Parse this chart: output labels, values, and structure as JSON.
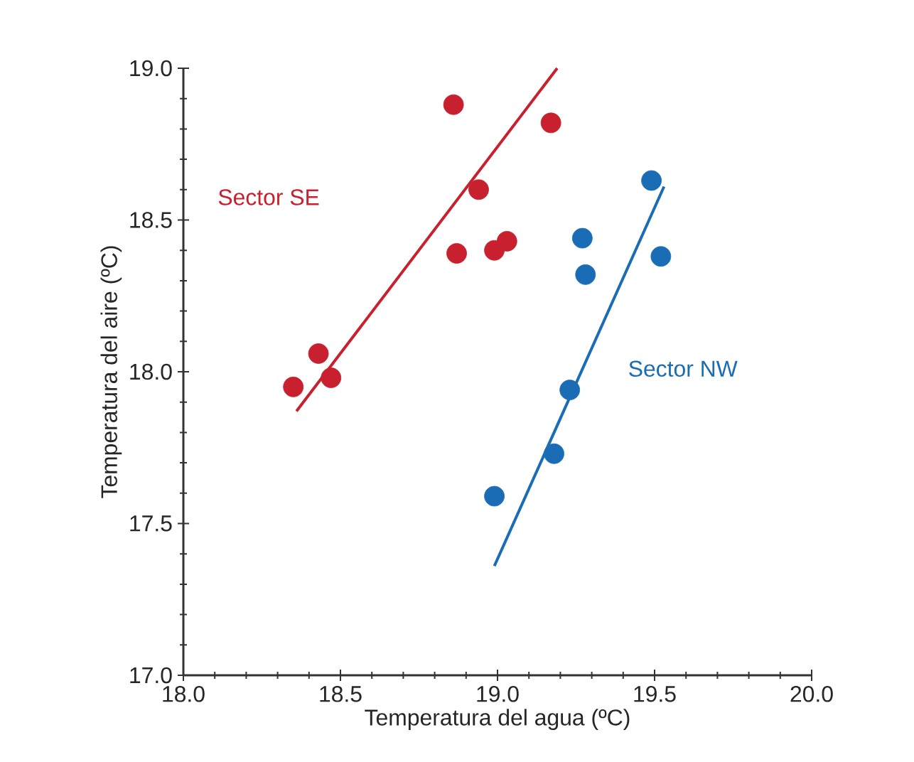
{
  "chart_data": {
    "type": "scatter",
    "xlabel": "Temperatura del agua (ºC)",
    "ylabel": "Temperatura del aire (ºC)",
    "xlim": [
      18.0,
      20.0
    ],
    "ylim": [
      17.0,
      19.0
    ],
    "xticks": [
      {
        "value": 18.0,
        "label": "18.0"
      },
      {
        "value": 18.5,
        "label": "18.5"
      },
      {
        "value": 19.0,
        "label": "19.0"
      },
      {
        "value": 19.5,
        "label": "19.5"
      },
      {
        "value": 20.0,
        "label": "20.0"
      }
    ],
    "yticks": [
      {
        "value": 17.0,
        "label": "17.0"
      },
      {
        "value": 17.5,
        "label": "17.5"
      },
      {
        "value": 18.0,
        "label": "18.0"
      },
      {
        "value": 18.5,
        "label": "18.5"
      },
      {
        "value": 19.0,
        "label": "19.0"
      }
    ],
    "grid": false,
    "legend": false,
    "marker": "circle",
    "series": [
      {
        "name": "Sector SE",
        "color": "#c8202e",
        "x": [
          18.35,
          18.43,
          18.47,
          18.86,
          18.87,
          18.94,
          18.99,
          19.03,
          19.17
        ],
        "values": [
          17.95,
          18.06,
          17.98,
          18.88,
          18.39,
          18.6,
          18.4,
          18.43,
          18.82
        ]
      },
      {
        "name": "Sector NW",
        "color": "#1a6db5",
        "x": [
          18.99,
          19.18,
          19.23,
          19.27,
          19.28,
          19.49,
          19.52
        ],
        "values": [
          17.59,
          17.73,
          17.94,
          18.44,
          18.32,
          18.63,
          18.38
        ]
      },
      {
        "type": "line",
        "color": "#c8202e",
        "marker": "none",
        "x": [
          18.36,
          19.19
        ],
        "values": [
          17.87,
          19.0
        ]
      },
      {
        "type": "line",
        "color": "#1a6db5",
        "marker": "none",
        "x": [
          18.99,
          19.53
        ],
        "values": [
          17.36,
          18.61
        ]
      }
    ]
  }
}
